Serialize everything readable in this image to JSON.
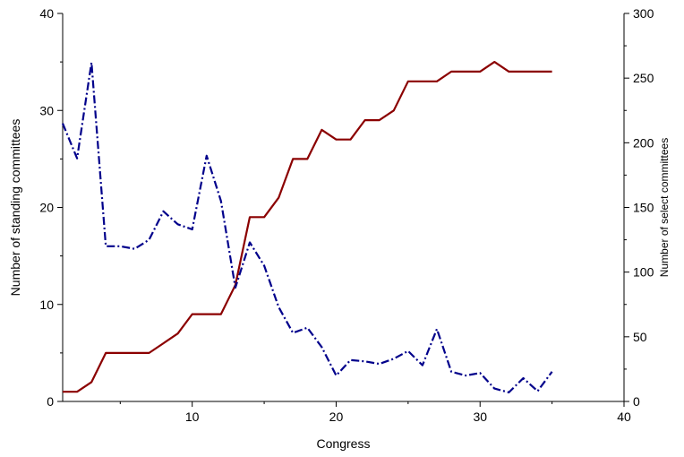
{
  "chart_data": {
    "type": "line",
    "xlabel": "Congress",
    "ylabel_left": "Number of standing committees",
    "ylabel_right": "Number of select committees",
    "xlim": [
      1,
      40
    ],
    "ylim_left": [
      0,
      40
    ],
    "ylim_right": [
      0,
      300
    ],
    "x_ticks": [
      10,
      20,
      30,
      40
    ],
    "y_left_ticks": [
      0,
      10,
      20,
      30,
      40
    ],
    "y_right_ticks": [
      0,
      50,
      100,
      150,
      200,
      250,
      300
    ],
    "grid": false,
    "legend": "none",
    "series": [
      {
        "axis": "left",
        "style": "solid",
        "color": "#8b0000",
        "x": [
          1,
          2,
          3,
          4,
          5,
          6,
          7,
          8,
          9,
          10,
          11,
          12,
          13,
          14,
          15,
          16,
          17,
          18,
          19,
          20,
          21,
          22,
          23,
          24,
          25,
          26,
          27,
          28,
          29,
          30,
          31,
          32,
          33,
          34,
          35
        ],
        "values": [
          1,
          1,
          2,
          5,
          5,
          5,
          5,
          6,
          7,
          9,
          9,
          9,
          12,
          19,
          19,
          21,
          25,
          25,
          28,
          27,
          27,
          29,
          29,
          30,
          33,
          33,
          33,
          34,
          34,
          34,
          35,
          34,
          34,
          34,
          34
        ]
      },
      {
        "axis": "right",
        "style": "dash-dot",
        "color": "#00008b",
        "x": [
          1,
          2,
          3,
          4,
          5,
          6,
          7,
          8,
          9,
          10,
          11,
          12,
          13,
          14,
          15,
          16,
          17,
          18,
          19,
          20,
          21,
          22,
          23,
          24,
          25,
          26,
          27,
          28,
          29,
          30,
          31,
          32,
          33,
          34,
          35
        ],
        "values": [
          215,
          188,
          262,
          120,
          120,
          118,
          125,
          147,
          137,
          133,
          190,
          155,
          88,
          123,
          105,
          73,
          53,
          57,
          42,
          20,
          32,
          31,
          29,
          33,
          39,
          28,
          56,
          23,
          20,
          22,
          10,
          7,
          18,
          8,
          23
        ]
      }
    ]
  }
}
